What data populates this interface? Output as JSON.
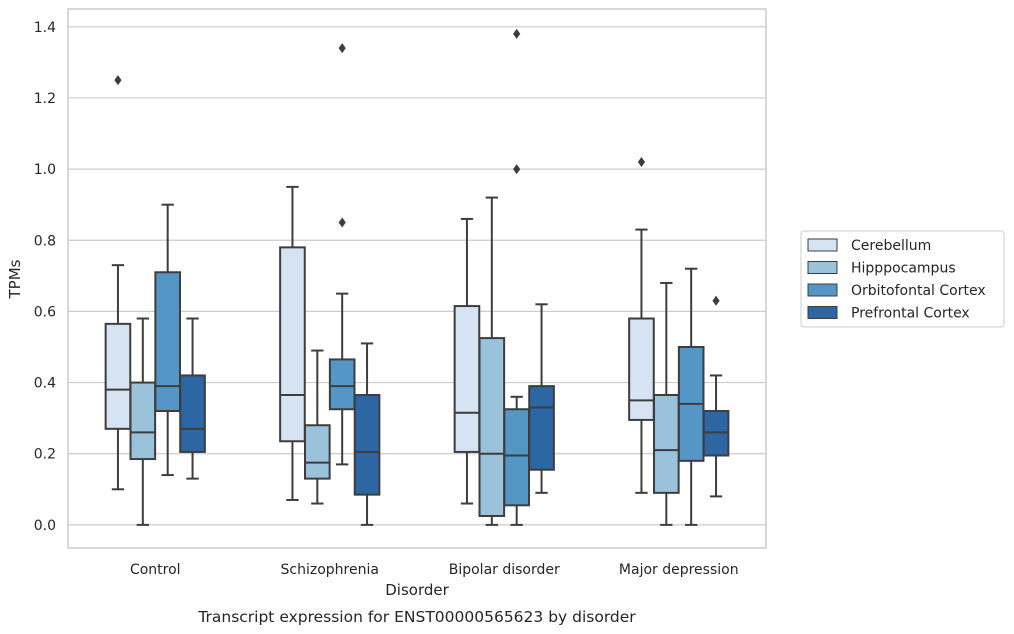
{
  "chart_data": {
    "type": "box",
    "caption": "Transcript expression for ENST00000565623 by disorder",
    "xlabel": "Disorder",
    "ylabel": "TPMs",
    "ylim": [
      -0.065,
      1.45
    ],
    "yticks": [
      0.0,
      0.2,
      0.4,
      0.6,
      0.8,
      1.0,
      1.2,
      1.4
    ],
    "ytick_labels": [
      "0.0",
      "0.2",
      "0.4",
      "0.6",
      "0.8",
      "1.0",
      "1.2",
      "1.4"
    ],
    "grid": "horizontal",
    "legend_position": "right",
    "categories": [
      "Control",
      "Schizophrenia",
      "Bipolar disorder",
      "Major depression"
    ],
    "series": [
      {
        "name": "Cerebellum",
        "color": "#d6e3f3",
        "boxes": [
          {
            "whisker_low": 0.1,
            "q1": 0.27,
            "median": 0.38,
            "q3": 0.565,
            "whisker_high": 0.73,
            "outliers": [
              1.25
            ]
          },
          {
            "whisker_low": 0.07,
            "q1": 0.235,
            "median": 0.365,
            "q3": 0.78,
            "whisker_high": 0.95,
            "outliers": []
          },
          {
            "whisker_low": 0.06,
            "q1": 0.205,
            "median": 0.315,
            "q3": 0.615,
            "whisker_high": 0.86,
            "outliers": []
          },
          {
            "whisker_low": 0.09,
            "q1": 0.295,
            "median": 0.35,
            "q3": 0.58,
            "whisker_high": 0.83,
            "outliers": [
              1.02
            ]
          }
        ]
      },
      {
        "name": "Hipppocampus",
        "color": "#9ac2db",
        "boxes": [
          {
            "whisker_low": 0.0,
            "q1": 0.185,
            "median": 0.26,
            "q3": 0.4,
            "whisker_high": 0.58,
            "outliers": []
          },
          {
            "whisker_low": 0.06,
            "q1": 0.13,
            "median": 0.175,
            "q3": 0.28,
            "whisker_high": 0.49,
            "outliers": []
          },
          {
            "whisker_low": 0.0,
            "q1": 0.025,
            "median": 0.2,
            "q3": 0.525,
            "whisker_high": 0.92,
            "outliers": []
          },
          {
            "whisker_low": 0.0,
            "q1": 0.09,
            "median": 0.21,
            "q3": 0.365,
            "whisker_high": 0.68,
            "outliers": []
          }
        ]
      },
      {
        "name": "Orbitofontal Cortex",
        "color": "#5497c6",
        "boxes": [
          {
            "whisker_low": 0.14,
            "q1": 0.32,
            "median": 0.39,
            "q3": 0.71,
            "whisker_high": 0.9,
            "outliers": []
          },
          {
            "whisker_low": 0.17,
            "q1": 0.325,
            "median": 0.39,
            "q3": 0.465,
            "whisker_high": 0.65,
            "outliers": [
              0.85,
              1.34
            ]
          },
          {
            "whisker_low": 0.0,
            "q1": 0.055,
            "median": 0.195,
            "q3": 0.325,
            "whisker_high": 0.36,
            "outliers": [
              1.0,
              1.38
            ]
          },
          {
            "whisker_low": 0.0,
            "q1": 0.18,
            "median": 0.34,
            "q3": 0.5,
            "whisker_high": 0.72,
            "outliers": []
          }
        ]
      },
      {
        "name": "Prefrontal Cortex",
        "color": "#2d67a3",
        "boxes": [
          {
            "whisker_low": 0.13,
            "q1": 0.205,
            "median": 0.27,
            "q3": 0.42,
            "whisker_high": 0.58,
            "outliers": []
          },
          {
            "whisker_low": 0.0,
            "q1": 0.085,
            "median": 0.205,
            "q3": 0.365,
            "whisker_high": 0.51,
            "outliers": []
          },
          {
            "whisker_low": 0.09,
            "q1": 0.155,
            "median": 0.33,
            "q3": 0.39,
            "whisker_high": 0.62,
            "outliers": []
          },
          {
            "whisker_low": 0.08,
            "q1": 0.195,
            "median": 0.26,
            "q3": 0.32,
            "whisker_high": 0.42,
            "outliers": [
              0.63
            ]
          }
        ]
      }
    ]
  }
}
